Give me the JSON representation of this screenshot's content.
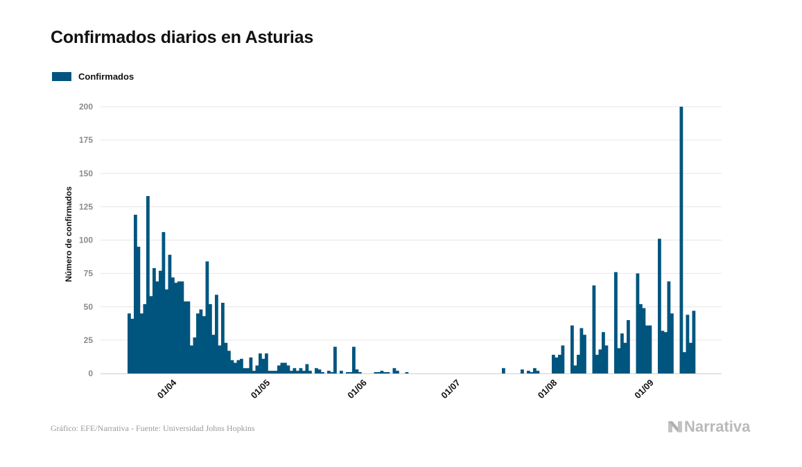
{
  "title": "Confirmados diarios en Asturias",
  "legend": {
    "label": "Confirmados",
    "color": "#00557f"
  },
  "source": "Gráfico: EFE/Narrativa - Fuente: Universidad Johns Hopkins",
  "brand": {
    "name": "Narrativa",
    "icon": "narrativa-n-logo-icon"
  },
  "chart_data": {
    "type": "bar",
    "ylabel": "Número de confirmados",
    "xlabel": "",
    "ylim": [
      0,
      210
    ],
    "yticks": [
      0,
      25,
      50,
      75,
      100,
      125,
      150,
      175,
      200
    ],
    "grid": true,
    "legend_position": "top-left",
    "x_start": "2020-03-18",
    "xticks": [
      {
        "label": "01/04",
        "date": "2020-04-01"
      },
      {
        "label": "01/05",
        "date": "2020-05-01"
      },
      {
        "label": "01/06",
        "date": "2020-06-01"
      },
      {
        "label": "01/07",
        "date": "2020-07-01"
      },
      {
        "label": "01/08",
        "date": "2020-08-01"
      },
      {
        "label": "01/09",
        "date": "2020-09-01"
      }
    ],
    "series": [
      {
        "name": "Confirmados",
        "color": "#00557f",
        "values": [
          45,
          41,
          119,
          95,
          45,
          52,
          133,
          58,
          79,
          69,
          77,
          106,
          63,
          89,
          72,
          68,
          69,
          69,
          54,
          54,
          21,
          27,
          45,
          48,
          43,
          84,
          52,
          29,
          59,
          21,
          53,
          23,
          17,
          10,
          8,
          10,
          11,
          4,
          4,
          12,
          2,
          6,
          15,
          11,
          15,
          2,
          2,
          2,
          6,
          8,
          8,
          6,
          2,
          4,
          2,
          4,
          2,
          7,
          2,
          0,
          4,
          3,
          1,
          0,
          2,
          1,
          20,
          0,
          2,
          0,
          1,
          1,
          20,
          3,
          1,
          0,
          0,
          0,
          0,
          1,
          1,
          2,
          1,
          1,
          0,
          4,
          2,
          0,
          0,
          1,
          0,
          0,
          0,
          0,
          0,
          0,
          0,
          0,
          0,
          0,
          0,
          0,
          0,
          0,
          0,
          0,
          0,
          0,
          0,
          0,
          0,
          0,
          0,
          0,
          0,
          0,
          0,
          0,
          0,
          0,
          4,
          0,
          0,
          0,
          0,
          0,
          3,
          0,
          2,
          1,
          4,
          2,
          0,
          0,
          0,
          0,
          14,
          12,
          14,
          21,
          0,
          0,
          36,
          6,
          14,
          34,
          29,
          0,
          0,
          66,
          14,
          18,
          31,
          21,
          0,
          0,
          76,
          19,
          30,
          23,
          40,
          0,
          0,
          75,
          52,
          49,
          36,
          36,
          0,
          0,
          101,
          32,
          31,
          69,
          45,
          0,
          0,
          200,
          16,
          44,
          23,
          47
        ]
      }
    ]
  }
}
